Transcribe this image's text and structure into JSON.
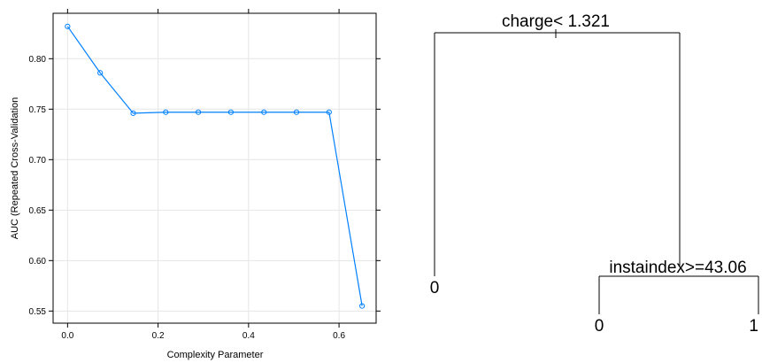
{
  "chart_data": [
    {
      "type": "line",
      "xlabel": "Complexity Parameter",
      "ylabel": "AUC (Repeated Cross-Validation",
      "xlim": [
        -0.032,
        0.682
      ],
      "ylim": [
        0.538,
        0.845
      ],
      "x_ticks": [
        "0.0",
        "0.2",
        "0.4",
        "0.6"
      ],
      "y_ticks": [
        "0.55",
        "0.60",
        "0.65",
        "0.70",
        "0.75",
        "0.80"
      ],
      "x_tick_values": [
        0.0,
        0.2,
        0.4,
        0.6
      ],
      "y_tick_values": [
        0.55,
        0.6,
        0.65,
        0.7,
        0.75,
        0.8
      ],
      "grid": true,
      "line_color": "#0080ff",
      "series": [
        {
          "x": [
            0.0,
            0.072,
            0.145,
            0.217,
            0.289,
            0.361,
            0.434,
            0.506,
            0.578,
            0.651
          ],
          "y": [
            0.832,
            0.786,
            0.746,
            0.747,
            0.747,
            0.747,
            0.747,
            0.747,
            0.747,
            0.555
          ]
        }
      ]
    },
    {
      "type": "tree",
      "root_label": "charge< 1.321",
      "left_leaf": "0",
      "right_split_label": "instaindex>=43.06",
      "right_left_leaf": "0",
      "right_right_leaf": "1"
    }
  ]
}
